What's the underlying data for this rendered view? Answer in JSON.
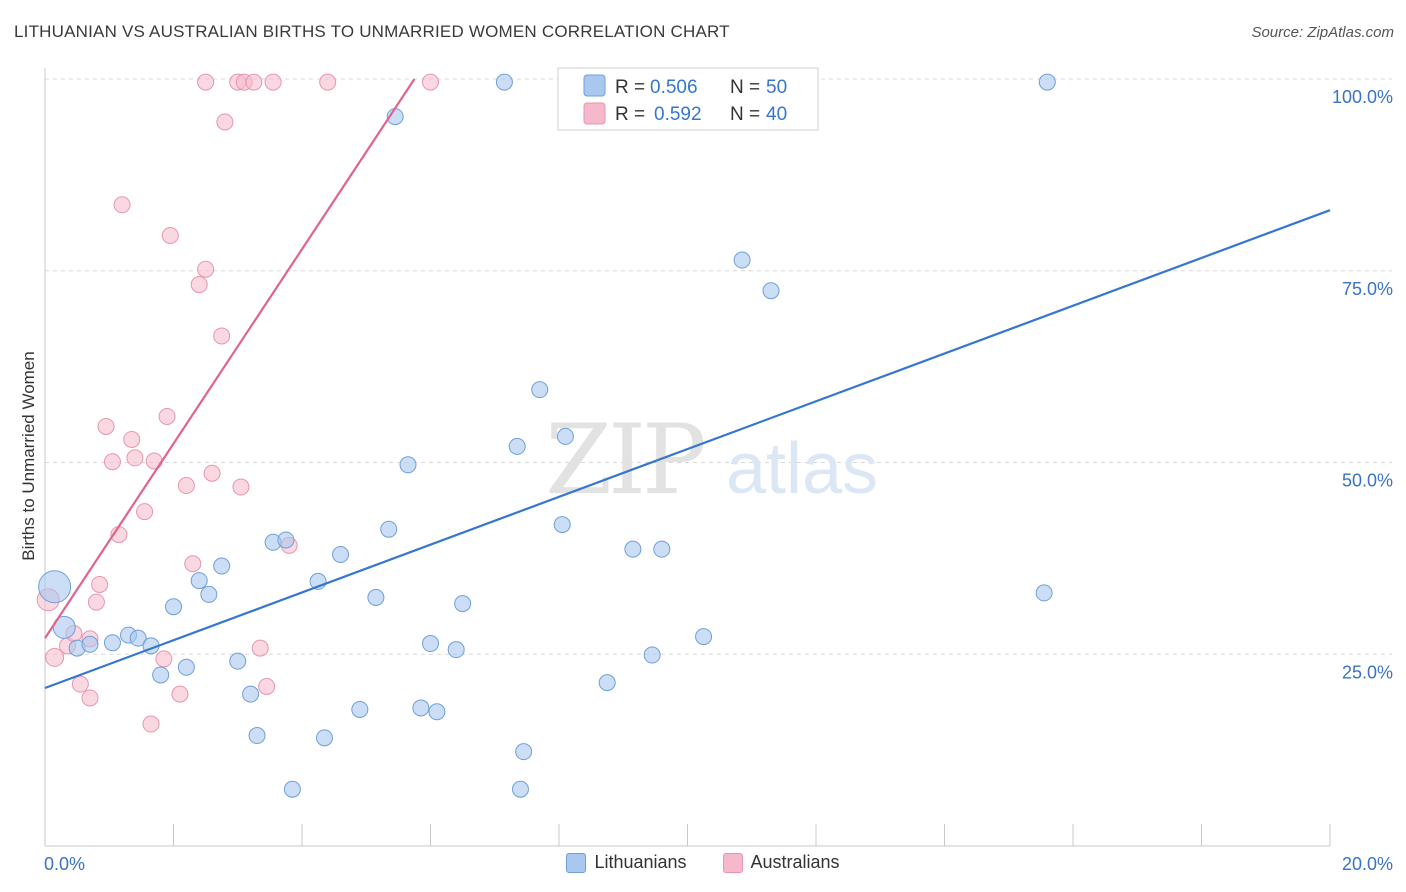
{
  "header": {
    "title": "LITHUANIAN VS AUSTRALIAN BIRTHS TO UNMARRIED WOMEN CORRELATION CHART",
    "source": "Source: ZipAtlas.com"
  },
  "watermark": {
    "zip": "ZIP",
    "atlas": "atlas"
  },
  "stats_legend": [
    {
      "series": "Lithuanians",
      "r_label": "R =",
      "r_value": "0.506",
      "n_label": "N =",
      "n_value": "50"
    },
    {
      "series": "Australians",
      "r_label": "R =",
      "r_value": "0.592",
      "n_label": "N =",
      "n_value": "40"
    }
  ],
  "bottom_legend": [
    "Lithuanians",
    "Australians"
  ],
  "colors": {
    "blue_fill": "#a9c8ef",
    "blue_stroke": "#6f9fd8",
    "blue_line": "#3577d0",
    "pink_fill": "#f6b8cb",
    "pink_stroke": "#e895ae",
    "pink_line": "#e0648d",
    "tick_text": "#3a72c4",
    "grid": "#d8d8d8"
  },
  "chart_data": {
    "type": "scatter",
    "title": "LITHUANIAN VS AUSTRALIAN BIRTHS TO UNMARRIED WOMEN CORRELATION CHART",
    "xlabel": "",
    "ylabel": "Births to Unmarried Women",
    "xlim": [
      0,
      20
    ],
    "ylim": [
      0,
      100
    ],
    "x_ticks": [
      0,
      2,
      4,
      6,
      8,
      10,
      12,
      14,
      16,
      18,
      20
    ],
    "x_tick_labels": {
      "0": "0.0%",
      "20": "20.0%"
    },
    "y_ticks": [
      25,
      50,
      75,
      100
    ],
    "y_tick_labels": [
      "25.0%",
      "50.0%",
      "75.0%",
      "100.0%"
    ],
    "grid": true,
    "legend_position": "top-center",
    "series": [
      {
        "name": "Lithuanians",
        "color": "#a9c8ef",
        "trend": {
          "x": [
            0,
            20
          ],
          "y": [
            20.6,
            82.9
          ]
        },
        "points": [
          {
            "x": 0.15,
            "y": 33.8,
            "s": 16
          },
          {
            "x": 0.3,
            "y": 28.5,
            "s": 11
          },
          {
            "x": 0.5,
            "y": 25.8,
            "s": 8
          },
          {
            "x": 0.7,
            "y": 26.3,
            "s": 8
          },
          {
            "x": 1.3,
            "y": 27.5,
            "s": 8
          },
          {
            "x": 1.05,
            "y": 26.5,
            "s": 8
          },
          {
            "x": 1.45,
            "y": 27.1,
            "s": 8
          },
          {
            "x": 1.65,
            "y": 26.1,
            "s": 8
          },
          {
            "x": 2.0,
            "y": 31.2,
            "s": 8
          },
          {
            "x": 1.8,
            "y": 22.3,
            "s": 8
          },
          {
            "x": 2.2,
            "y": 23.3,
            "s": 8
          },
          {
            "x": 2.4,
            "y": 34.6,
            "s": 8
          },
          {
            "x": 2.55,
            "y": 32.8,
            "s": 8
          },
          {
            "x": 2.75,
            "y": 36.5,
            "s": 8
          },
          {
            "x": 3.0,
            "y": 24.1,
            "s": 8
          },
          {
            "x": 3.2,
            "y": 19.8,
            "s": 8
          },
          {
            "x": 3.3,
            "y": 14.4,
            "s": 8
          },
          {
            "x": 3.55,
            "y": 39.6,
            "s": 8
          },
          {
            "x": 3.75,
            "y": 39.9,
            "s": 8
          },
          {
            "x": 3.85,
            "y": 7.4,
            "s": 8
          },
          {
            "x": 4.25,
            "y": 34.5,
            "s": 8
          },
          {
            "x": 4.35,
            "y": 14.1,
            "s": 8
          },
          {
            "x": 4.6,
            "y": 38.0,
            "s": 8
          },
          {
            "x": 4.9,
            "y": 17.8,
            "s": 8
          },
          {
            "x": 5.15,
            "y": 32.4,
            "s": 8
          },
          {
            "x": 5.35,
            "y": 41.3,
            "s": 8
          },
          {
            "x": 5.85,
            "y": 18.0,
            "s": 8
          },
          {
            "x": 5.45,
            "y": 95.1,
            "s": 8
          },
          {
            "x": 5.65,
            "y": 49.7,
            "s": 8
          },
          {
            "x": 6.0,
            "y": 26.4,
            "s": 8
          },
          {
            "x": 6.1,
            "y": 17.5,
            "s": 8
          },
          {
            "x": 6.4,
            "y": 25.6,
            "s": 8
          },
          {
            "x": 6.5,
            "y": 31.6,
            "s": 8
          },
          {
            "x": 7.15,
            "y": 99.6,
            "s": 8
          },
          {
            "x": 7.35,
            "y": 52.1,
            "s": 8
          },
          {
            "x": 7.4,
            "y": 7.4,
            "s": 8
          },
          {
            "x": 7.45,
            "y": 12.3,
            "s": 8
          },
          {
            "x": 7.7,
            "y": 59.5,
            "s": 8
          },
          {
            "x": 8.05,
            "y": 41.9,
            "s": 8
          },
          {
            "x": 8.1,
            "y": 53.4,
            "s": 8
          },
          {
            "x": 8.75,
            "y": 21.3,
            "s": 8
          },
          {
            "x": 9.15,
            "y": 38.7,
            "s": 8
          },
          {
            "x": 9.45,
            "y": 24.9,
            "s": 8
          },
          {
            "x": 9.6,
            "y": 38.7,
            "s": 8
          },
          {
            "x": 10.85,
            "y": 76.4,
            "s": 8
          },
          {
            "x": 11.3,
            "y": 72.4,
            "s": 8
          },
          {
            "x": 11.9,
            "y": 99.8,
            "s": 8
          },
          {
            "x": 15.6,
            "y": 99.6,
            "s": 8
          },
          {
            "x": 15.55,
            "y": 33.0,
            "s": 8
          },
          {
            "x": 10.25,
            "y": 27.3,
            "s": 8
          }
        ]
      },
      {
        "name": "Australians",
        "color": "#f6b8cb",
        "trend": {
          "x": [
            0,
            5.75
          ],
          "y": [
            27.1,
            100
          ]
        },
        "points": [
          {
            "x": 0.05,
            "y": 32.1,
            "s": 11
          },
          {
            "x": 0.15,
            "y": 24.6,
            "s": 9
          },
          {
            "x": 0.35,
            "y": 26.1,
            "s": 8
          },
          {
            "x": 0.45,
            "y": 27.7,
            "s": 8
          },
          {
            "x": 0.55,
            "y": 21.1,
            "s": 8
          },
          {
            "x": 0.7,
            "y": 27.0,
            "s": 8
          },
          {
            "x": 0.7,
            "y": 19.3,
            "s": 8
          },
          {
            "x": 0.8,
            "y": 31.8,
            "s": 8
          },
          {
            "x": 0.85,
            "y": 34.1,
            "s": 8
          },
          {
            "x": 0.95,
            "y": 54.7,
            "s": 8
          },
          {
            "x": 1.05,
            "y": 50.1,
            "s": 8
          },
          {
            "x": 1.15,
            "y": 40.6,
            "s": 8
          },
          {
            "x": 1.2,
            "y": 83.6,
            "s": 8
          },
          {
            "x": 1.35,
            "y": 53.0,
            "s": 8
          },
          {
            "x": 1.4,
            "y": 50.6,
            "s": 8
          },
          {
            "x": 1.55,
            "y": 43.6,
            "s": 8
          },
          {
            "x": 1.65,
            "y": 15.9,
            "s": 8
          },
          {
            "x": 1.7,
            "y": 50.2,
            "s": 8
          },
          {
            "x": 1.85,
            "y": 24.4,
            "s": 8
          },
          {
            "x": 1.9,
            "y": 56.0,
            "s": 8
          },
          {
            "x": 1.95,
            "y": 79.6,
            "s": 8
          },
          {
            "x": 2.1,
            "y": 19.8,
            "s": 8
          },
          {
            "x": 2.2,
            "y": 47.0,
            "s": 8
          },
          {
            "x": 2.3,
            "y": 36.8,
            "s": 8
          },
          {
            "x": 2.4,
            "y": 73.2,
            "s": 8
          },
          {
            "x": 2.5,
            "y": 99.6,
            "s": 8
          },
          {
            "x": 2.5,
            "y": 75.2,
            "s": 8
          },
          {
            "x": 2.6,
            "y": 48.6,
            "s": 8
          },
          {
            "x": 2.75,
            "y": 66.5,
            "s": 8
          },
          {
            "x": 2.8,
            "y": 94.4,
            "s": 8
          },
          {
            "x": 3.0,
            "y": 99.6,
            "s": 8
          },
          {
            "x": 3.05,
            "y": 46.8,
            "s": 8
          },
          {
            "x": 3.1,
            "y": 99.6,
            "s": 8
          },
          {
            "x": 3.25,
            "y": 99.6,
            "s": 8
          },
          {
            "x": 3.35,
            "y": 25.8,
            "s": 8
          },
          {
            "x": 3.45,
            "y": 20.8,
            "s": 8
          },
          {
            "x": 3.55,
            "y": 99.6,
            "s": 8
          },
          {
            "x": 3.8,
            "y": 39.2,
            "s": 8
          },
          {
            "x": 4.4,
            "y": 99.6,
            "s": 8
          },
          {
            "x": 6.0,
            "y": 99.6,
            "s": 8
          }
        ]
      }
    ]
  }
}
